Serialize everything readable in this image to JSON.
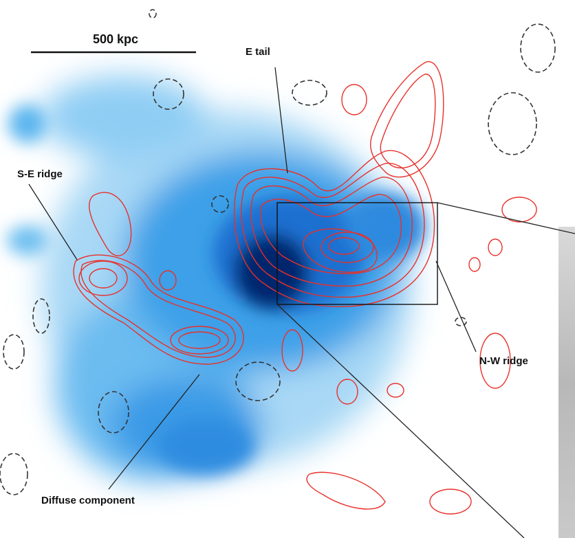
{
  "scale_bar": {
    "label": "500 kpc"
  },
  "labels": {
    "e_tail": "E tail",
    "se_ridge": "S-E ridge",
    "nw_ridge": "N-W ridge",
    "diffuse": "Diffuse component"
  }
}
